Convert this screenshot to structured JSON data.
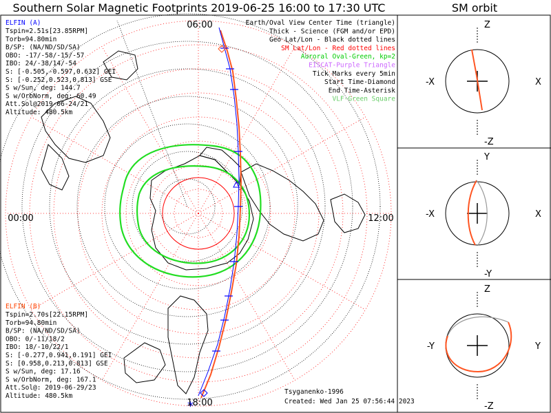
{
  "title": "Southern Solar Magnetic Footprints 2019-06-25 16:00 to 17:30 UTC",
  "orbit_title": "SM orbit",
  "map": {
    "time_labels": {
      "top": "06:00",
      "left": "00:00",
      "right": "12:00",
      "bottom": "18:00"
    }
  },
  "legend": [
    {
      "text": "Earth/Oval View Center Time (triangle)",
      "color": "#000000"
    },
    {
      "text": "Thick - Science (FGM and/or EPD)",
      "color": "#000000"
    },
    {
      "text": "Geo Lat/Lon - Black dotted lines",
      "color": "#000000"
    },
    {
      "text": "SM Lat/Lon - Red dotted lines",
      "color": "#ff0000"
    },
    {
      "text": "Auroral Oval-Green, kp=2",
      "color": "#00cc00"
    },
    {
      "text": "EISCAT-Purple Triangle",
      "color": "#cc66ff"
    },
    {
      "text": "Tick Marks every 5min",
      "color": "#000000"
    },
    {
      "text": "Start Time-Diamond",
      "color": "#000000"
    },
    {
      "text": "End Time-Asterisk",
      "color": "#000000"
    },
    {
      "text": "VLF-Green Square",
      "color": "#66cc66"
    }
  ],
  "elfin_a": {
    "name": "ELFIN (A)",
    "color": "#0000ff",
    "lines": [
      "Tspin=2.51s[23.85RPM]",
      "Torb=94.80min",
      "B/SP: (NA/ND/SD/SA)",
      "OBO: -17/-58/-15/-57",
      "IBO: 24/-38/14/-54",
      "S: [-0.505,-0.597,0.632] GEI",
      "S: [-0.252,0.523,0.813] GSE",
      "S w/Sun, deg: 144.7",
      "S w/OrbNorm, deg: 60.49",
      "Att.Sol@2019-06-24/21",
      "Altitude: 480.5km"
    ]
  },
  "elfin_b": {
    "name": "ELFIN (B)",
    "color": "#ff4400",
    "lines": [
      "Tspin=2.70s[22.15RPM]",
      "Torb=94.80min",
      "B/SP: (NA/ND/SD/SA)",
      "OBO: 0/-11/18/2",
      "IBO: 18/-10/22/1",
      "S: [-0.277,0.941,0.191] GEI",
      "S: [0.958,0.213,0.813] GSE",
      "S w/Sun, deg: 17.16",
      "S w/OrbNorm, deg: 167.1",
      "Att.Sol@: 2019-06-29/23",
      "Altitude: 480.5km"
    ]
  },
  "footer": {
    "model": "Tsyganenko-1996",
    "created": "Created: Wed Jan 25 07:56:44 2023"
  },
  "orbit_panels": [
    {
      "top": "Z",
      "bottom": "-Z",
      "left": "-X",
      "right": "X"
    },
    {
      "top": "Y",
      "bottom": "-Y",
      "left": "-X",
      "right": "X"
    },
    {
      "top": "Z",
      "bottom": "-Z",
      "left": "-Y",
      "right": "Y"
    }
  ],
  "colors": {
    "sm_grid": "#ff0000",
    "geo_grid": "#000000",
    "oval": "#22dd22",
    "track_a": "#0000ff",
    "track_b": "#ff5522"
  }
}
